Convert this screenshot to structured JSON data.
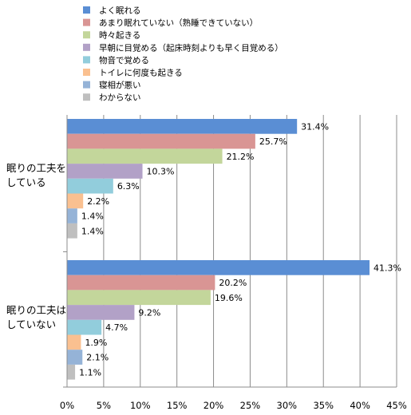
{
  "chart_data": {
    "type": "bar",
    "orientation": "horizontal",
    "groups": [
      "眠りの工夫をしている",
      "眠りの工夫はしていない"
    ],
    "group_label_lines": [
      [
        "眠りの工夫を",
        "している"
      ],
      [
        "眠りの工夫は",
        "していない"
      ]
    ],
    "series": [
      {
        "name": "よく眠れる",
        "color": "#5a8ed4",
        "values": [
          31.4,
          41.3
        ]
      },
      {
        "name": "あまり眠れていない（熟睡できていない）",
        "color": "#d99594",
        "values": [
          25.7,
          20.2
        ]
      },
      {
        "name": "時々起きる",
        "color": "#c3d69b",
        "values": [
          21.2,
          19.6
        ]
      },
      {
        "name": "早朝に目覚める（起床時刻よりも早く目覚める）",
        "color": "#b2a1c7",
        "values": [
          10.3,
          9.2
        ]
      },
      {
        "name": "物音で覚める",
        "color": "#92cddc",
        "values": [
          6.3,
          4.7
        ]
      },
      {
        "name": "トイレに何度も起きる",
        "color": "#fac090",
        "values": [
          2.2,
          1.9
        ]
      },
      {
        "name": "寝相が悪い",
        "color": "#95b3d7",
        "values": [
          1.4,
          2.1
        ]
      },
      {
        "name": "わからない",
        "color": "#bfbfbf",
        "values": [
          1.4,
          1.1
        ]
      }
    ],
    "value_labels": [
      [
        "31.4%",
        "41.3%"
      ],
      [
        "25.7%",
        "20.2%"
      ],
      [
        "21.2%",
        "19.6%"
      ],
      [
        "10.3%",
        "9.2%"
      ],
      [
        "6.3%",
        "4.7%"
      ],
      [
        "2.2%",
        "1.9%"
      ],
      [
        "1.4%",
        "2.1%"
      ],
      [
        "1.4%",
        "1.1%"
      ]
    ],
    "xlim": [
      0,
      45
    ],
    "xticks": [
      0,
      5,
      10,
      15,
      20,
      25,
      30,
      35,
      40,
      45
    ],
    "xtick_labels": [
      "0%",
      "5%",
      "10%",
      "15%",
      "20%",
      "25%",
      "30%",
      "35%",
      "40%",
      "45%"
    ],
    "grid": true,
    "legend_position": "top-left"
  }
}
